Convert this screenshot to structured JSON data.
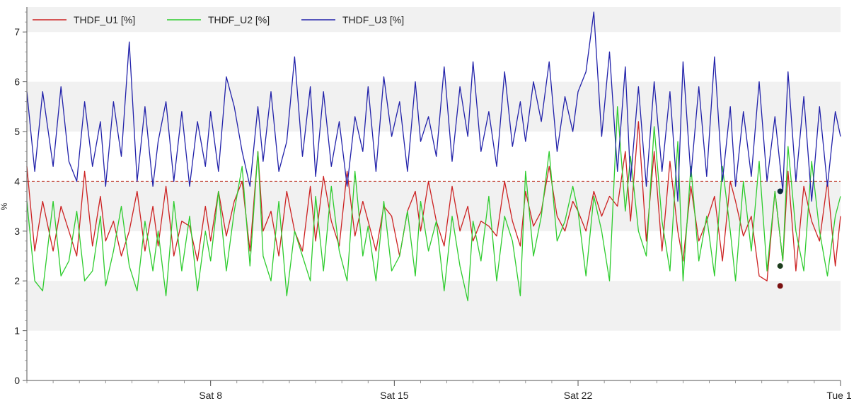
{
  "chart_data": {
    "type": "line",
    "xlabel": "",
    "ylabel": "%",
    "ylim": [
      0,
      7.5
    ],
    "yticks": [
      0,
      1,
      2,
      3,
      4,
      5,
      6,
      7
    ],
    "xticks": [
      {
        "day": 8,
        "label": "Sat 8"
      },
      {
        "day": 15,
        "label": "Sat 15"
      },
      {
        "day": 22,
        "label": "Sat 22"
      },
      {
        "day": 32,
        "label": "Tue 1"
      }
    ],
    "xlim_days": [
      1,
      32
    ],
    "grid": "alternating horizontal bands",
    "legend": "top-left",
    "reference_line": {
      "y": 4.0,
      "color": "#c0392b",
      "style": "dashed"
    },
    "series": [
      {
        "name": "THDF_U1 [%]",
        "color": "#cc2222",
        "x": [
          1.0,
          1.3,
          1.6,
          2.0,
          2.3,
          2.6,
          2.9,
          3.2,
          3.5,
          3.8,
          4.0,
          4.3,
          4.6,
          4.9,
          5.2,
          5.5,
          5.8,
          6.0,
          6.3,
          6.6,
          6.9,
          7.2,
          7.5,
          7.8,
          8.0,
          8.3,
          8.6,
          8.9,
          9.2,
          9.5,
          9.8,
          10.0,
          10.3,
          10.6,
          10.9,
          11.2,
          11.5,
          11.8,
          12.0,
          12.3,
          12.6,
          12.9,
          13.2,
          13.5,
          13.8,
          14.0,
          14.3,
          14.6,
          14.9,
          15.2,
          15.5,
          15.8,
          16.0,
          16.3,
          16.6,
          16.9,
          17.2,
          17.5,
          17.8,
          18.0,
          18.3,
          18.6,
          18.9,
          19.2,
          19.5,
          19.8,
          20.0,
          20.3,
          20.6,
          20.9,
          21.2,
          21.5,
          21.8,
          22.0,
          22.3,
          22.6,
          22.9,
          23.2,
          23.5,
          23.8,
          24.0,
          24.3,
          24.6,
          24.9,
          25.2,
          25.5,
          25.8,
          26.0,
          26.3,
          26.6,
          26.9,
          27.2,
          27.5,
          27.8,
          28.0,
          28.3,
          28.6,
          28.9,
          29.2,
          29.5,
          29.8,
          30.0,
          30.3,
          30.6,
          30.9,
          31.2,
          31.5,
          31.8,
          32.0
        ],
        "values": [
          4.3,
          2.6,
          3.6,
          2.6,
          3.5,
          3.0,
          2.5,
          4.2,
          2.7,
          3.7,
          2.8,
          3.2,
          2.5,
          3.0,
          3.8,
          2.6,
          3.5,
          2.7,
          3.9,
          2.5,
          3.2,
          3.1,
          2.4,
          3.5,
          2.8,
          3.8,
          2.9,
          3.6,
          4.0,
          2.6,
          4.6,
          3.0,
          3.4,
          2.5,
          3.8,
          3.0,
          2.6,
          3.9,
          2.8,
          4.1,
          3.2,
          2.7,
          4.2,
          2.9,
          3.6,
          3.2,
          2.6,
          3.5,
          3.3,
          2.5,
          3.4,
          3.8,
          3.0,
          4.0,
          3.2,
          2.7,
          3.9,
          3.0,
          3.5,
          2.8,
          3.2,
          3.1,
          2.9,
          4.0,
          3.2,
          2.7,
          3.8,
          3.1,
          3.4,
          4.3,
          3.3,
          3.0,
          3.6,
          3.4,
          3.0,
          3.8,
          3.3,
          3.7,
          3.5,
          4.6,
          3.2,
          5.2,
          2.8,
          4.6,
          2.6,
          4.4,
          3.0,
          2.4,
          3.9,
          2.8,
          3.2,
          3.7,
          2.4,
          4.0,
          3.6,
          2.9,
          3.3,
          2.1,
          2.0,
          3.8,
          2.4,
          4.2,
          2.2,
          3.9,
          3.2,
          2.8,
          4.0,
          2.3,
          3.3
        ],
        "end_marker": {
          "x": 29.7,
          "y": 1.9
        }
      },
      {
        "name": "THDF_U2 [%]",
        "color": "#2ecc2e",
        "x": [
          1.0,
          1.3,
          1.6,
          2.0,
          2.3,
          2.6,
          2.9,
          3.2,
          3.5,
          3.8,
          4.0,
          4.3,
          4.6,
          4.9,
          5.2,
          5.5,
          5.8,
          6.0,
          6.3,
          6.6,
          6.9,
          7.2,
          7.5,
          7.8,
          8.0,
          8.3,
          8.6,
          8.9,
          9.2,
          9.5,
          9.8,
          10.0,
          10.3,
          10.6,
          10.9,
          11.2,
          11.5,
          11.8,
          12.0,
          12.3,
          12.6,
          12.9,
          13.2,
          13.5,
          13.8,
          14.0,
          14.3,
          14.6,
          14.9,
          15.2,
          15.5,
          15.8,
          16.0,
          16.3,
          16.6,
          16.9,
          17.2,
          17.5,
          17.8,
          18.0,
          18.3,
          18.6,
          18.9,
          19.2,
          19.5,
          19.8,
          20.0,
          20.3,
          20.6,
          20.9,
          21.2,
          21.5,
          21.8,
          22.0,
          22.3,
          22.6,
          22.9,
          23.2,
          23.5,
          23.8,
          24.0,
          24.3,
          24.6,
          24.9,
          25.2,
          25.5,
          25.8,
          26.0,
          26.3,
          26.6,
          26.9,
          27.2,
          27.5,
          27.8,
          28.0,
          28.3,
          28.6,
          28.9,
          29.2,
          29.5,
          29.8,
          30.0,
          30.3,
          30.6,
          30.9,
          31.2,
          31.5,
          31.8,
          32.0
        ],
        "values": [
          3.6,
          2.0,
          1.8,
          3.6,
          2.1,
          2.4,
          3.4,
          2.0,
          2.2,
          3.3,
          1.9,
          2.6,
          3.5,
          2.3,
          1.8,
          3.2,
          2.2,
          3.0,
          1.7,
          3.6,
          2.2,
          3.3,
          1.8,
          3.0,
          2.4,
          3.8,
          2.2,
          3.4,
          4.3,
          2.3,
          4.6,
          2.5,
          2.0,
          3.6,
          1.7,
          3.0,
          2.5,
          2.0,
          3.7,
          2.2,
          3.9,
          2.6,
          2.0,
          4.2,
          2.5,
          3.1,
          2.0,
          3.6,
          2.2,
          2.5,
          3.4,
          2.1,
          3.6,
          2.6,
          3.2,
          1.8,
          3.3,
          2.3,
          1.6,
          3.2,
          2.4,
          3.7,
          2.0,
          3.3,
          2.8,
          1.7,
          4.2,
          2.5,
          3.3,
          4.6,
          2.8,
          3.2,
          3.9,
          3.4,
          2.1,
          3.7,
          3.0,
          2.0,
          5.5,
          3.4,
          4.5,
          3.0,
          2.5,
          5.1,
          3.2,
          2.2,
          4.8,
          2.0,
          4.3,
          2.4,
          3.3,
          2.1,
          4.3,
          3.0,
          2.0,
          4.0,
          2.6,
          4.4,
          2.2,
          3.8,
          2.4,
          4.7,
          3.0,
          2.2,
          4.4,
          3.0,
          2.1,
          3.3,
          3.7
        ],
        "end_marker": {
          "x": 29.7,
          "y": 2.3
        }
      },
      {
        "name": "THDF_U3 [%]",
        "color": "#2222aa",
        "x": [
          1.0,
          1.3,
          1.6,
          2.0,
          2.3,
          2.6,
          2.9,
          3.2,
          3.5,
          3.8,
          4.0,
          4.3,
          4.6,
          4.9,
          5.2,
          5.5,
          5.8,
          6.0,
          6.3,
          6.6,
          6.9,
          7.2,
          7.5,
          7.8,
          8.0,
          8.3,
          8.6,
          8.9,
          9.2,
          9.5,
          9.8,
          10.0,
          10.3,
          10.6,
          10.9,
          11.2,
          11.5,
          11.8,
          12.0,
          12.3,
          12.6,
          12.9,
          13.2,
          13.5,
          13.8,
          14.0,
          14.3,
          14.6,
          14.9,
          15.2,
          15.5,
          15.8,
          16.0,
          16.3,
          16.6,
          16.9,
          17.2,
          17.5,
          17.8,
          18.0,
          18.3,
          18.6,
          18.9,
          19.2,
          19.5,
          19.8,
          20.0,
          20.3,
          20.6,
          20.9,
          21.2,
          21.5,
          21.8,
          22.0,
          22.3,
          22.6,
          22.9,
          23.2,
          23.5,
          23.8,
          24.0,
          24.3,
          24.6,
          24.9,
          25.2,
          25.5,
          25.8,
          26.0,
          26.3,
          26.6,
          26.9,
          27.2,
          27.5,
          27.8,
          28.0,
          28.3,
          28.6,
          28.9,
          29.2,
          29.5,
          29.8,
          30.0,
          30.3,
          30.6,
          30.9,
          31.2,
          31.5,
          31.8,
          32.0
        ],
        "values": [
          5.8,
          4.2,
          5.8,
          4.3,
          5.9,
          4.4,
          4.0,
          5.6,
          4.3,
          5.2,
          3.9,
          5.6,
          4.5,
          6.8,
          4.0,
          5.5,
          3.9,
          4.8,
          5.6,
          4.0,
          5.4,
          3.9,
          5.2,
          4.3,
          5.4,
          4.2,
          6.1,
          5.5,
          4.6,
          3.9,
          5.5,
          4.4,
          5.8,
          4.2,
          4.8,
          6.5,
          4.5,
          5.9,
          4.1,
          5.8,
          4.3,
          5.2,
          3.9,
          5.3,
          4.6,
          5.9,
          4.2,
          6.1,
          4.9,
          5.6,
          4.2,
          6.0,
          4.8,
          5.3,
          4.5,
          6.3,
          4.4,
          5.9,
          4.9,
          6.4,
          4.6,
          5.4,
          4.3,
          6.2,
          4.7,
          5.6,
          4.8,
          6.0,
          5.2,
          6.4,
          4.6,
          5.7,
          5.0,
          5.8,
          6.2,
          7.4,
          4.9,
          6.6,
          4.2,
          6.3,
          4.0,
          5.9,
          3.9,
          6.0,
          4.2,
          5.8,
          3.6,
          6.4,
          4.1,
          5.9,
          4.1,
          6.5,
          4.0,
          5.5,
          3.9,
          5.4,
          4.1,
          6.0,
          4.0,
          5.3,
          3.8,
          6.2,
          4.0,
          5.7,
          3.6,
          5.5,
          3.9,
          5.4,
          4.9
        ],
        "end_marker": {
          "x": 29.7,
          "y": 3.8
        }
      }
    ]
  }
}
